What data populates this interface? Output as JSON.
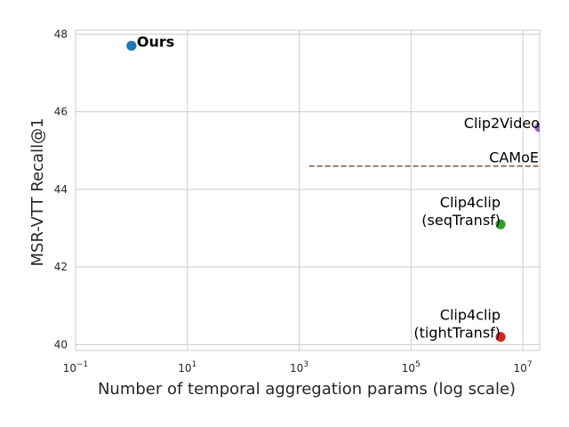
{
  "chart_data": {
    "type": "scatter",
    "xlabel": "Number of temporal aggregation params (log scale)",
    "ylabel": "MSR-VTT Recall@1",
    "xscale": "log",
    "xlim": [
      0.1,
      20000000
    ],
    "ylim": [
      39.85,
      48.1
    ],
    "grid": true,
    "x_ticks": [
      {
        "value": 0.1,
        "base": "10",
        "exp": "−1"
      },
      {
        "value": 10,
        "base": "10",
        "exp": "1"
      },
      {
        "value": 1000,
        "base": "10",
        "exp": "3"
      },
      {
        "value": 100000,
        "base": "10",
        "exp": "5"
      },
      {
        "value": 10000000,
        "base": "10",
        "exp": "7"
      }
    ],
    "y_ticks": [
      40,
      42,
      44,
      46,
      48
    ],
    "points": [
      {
        "lines": [
          "Ours"
        ],
        "x": 1,
        "y": 47.7,
        "color": "#1f77b4",
        "bold": true,
        "anchor": "start"
      },
      {
        "lines": [
          "Clip2Video"
        ],
        "x": 20000000,
        "y": 45.6,
        "color": "#9467bd",
        "bold": false,
        "anchor": "end"
      },
      {
        "lines": [
          "Clip4clip",
          "(seqTransf)"
        ],
        "x": 4000000,
        "y": 43.1,
        "color": "#2ca02c",
        "bold": false,
        "anchor": "end"
      },
      {
        "lines": [
          "Clip4clip",
          "(tightTransf)"
        ],
        "x": 4000000,
        "y": 40.2,
        "color": "#d62728",
        "bold": false,
        "anchor": "end"
      }
    ],
    "reference_lines": [
      {
        "label": "CAMoE",
        "y": 44.6,
        "x_start": 1500,
        "color": "#8c564b",
        "style": "dashed"
      }
    ]
  }
}
